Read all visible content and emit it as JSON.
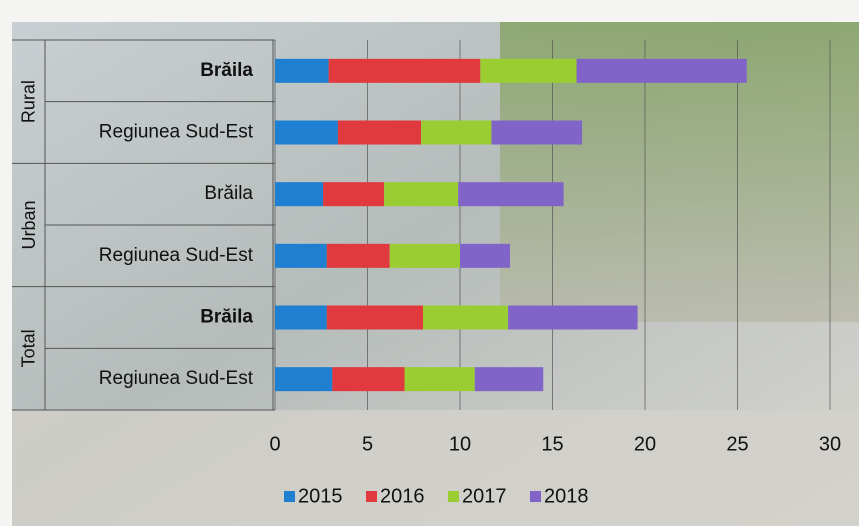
{
  "chart_data": {
    "type": "bar",
    "orientation": "horizontal",
    "stacked": true,
    "category_groups": [
      "Rural",
      "Urban",
      "Total"
    ],
    "categories": [
      "Brăila",
      "Regiunea Sud-Est",
      "Brăila",
      "Regiunea Sud-Est",
      "Brăila",
      "Regiunea Sud-Est"
    ],
    "series": [
      {
        "name": "2015",
        "color": "#1f7fd0",
        "values": [
          2.9,
          3.4,
          2.6,
          2.8,
          2.8,
          3.1
        ]
      },
      {
        "name": "2016",
        "color": "#e0393e",
        "values": [
          8.2,
          4.5,
          3.3,
          3.4,
          5.2,
          3.9
        ]
      },
      {
        "name": "2017",
        "color": "#9acd32",
        "values": [
          5.2,
          3.8,
          4.0,
          3.8,
          4.6,
          3.8
        ]
      },
      {
        "name": "2018",
        "color": "#8064c8",
        "values": [
          9.2,
          4.9,
          5.7,
          2.7,
          7.0,
          3.7
        ]
      }
    ],
    "xlim": [
      0,
      30
    ],
    "xticks": [
      0,
      5,
      10,
      15,
      20,
      25,
      30
    ],
    "grid": true,
    "legend": "bottom"
  }
}
